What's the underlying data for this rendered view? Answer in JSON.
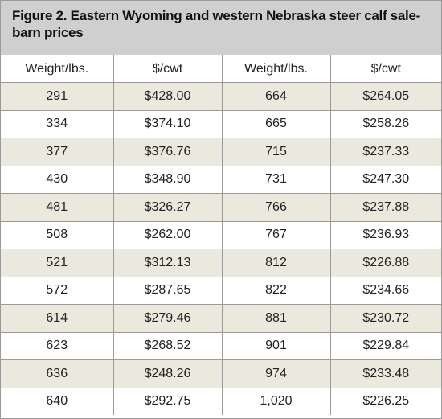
{
  "title": "Figure 2. Eastern Wyoming and western Nebraska steer calf sale-barn prices",
  "table": {
    "header": [
      "Weight/lbs.",
      "$/cwt",
      "Weight/lbs.",
      "$/cwt"
    ],
    "rows": [
      [
        "291",
        "$428.00",
        "664",
        "$264.05"
      ],
      [
        "334",
        "$374.10",
        "665",
        "$258.26"
      ],
      [
        "377",
        "$376.76",
        "715",
        "$237.33"
      ],
      [
        "430",
        "$348.90",
        "731",
        "$247.30"
      ],
      [
        "481",
        "$326.27",
        "766",
        "$237.88"
      ],
      [
        "508",
        "$262.00",
        "767",
        "$236.93"
      ],
      [
        "521",
        "$312.13",
        "812",
        "$226.88"
      ],
      [
        "572",
        "$287.65",
        "822",
        "$234.66"
      ],
      [
        "614",
        "$279.46",
        "881",
        "$230.72"
      ],
      [
        "623",
        "$268.52",
        "901",
        "$229.84"
      ],
      [
        "636",
        "$248.26",
        "974",
        "$233.48"
      ],
      [
        "640",
        "$292.75",
        "1,020",
        "$226.25"
      ]
    ]
  }
}
